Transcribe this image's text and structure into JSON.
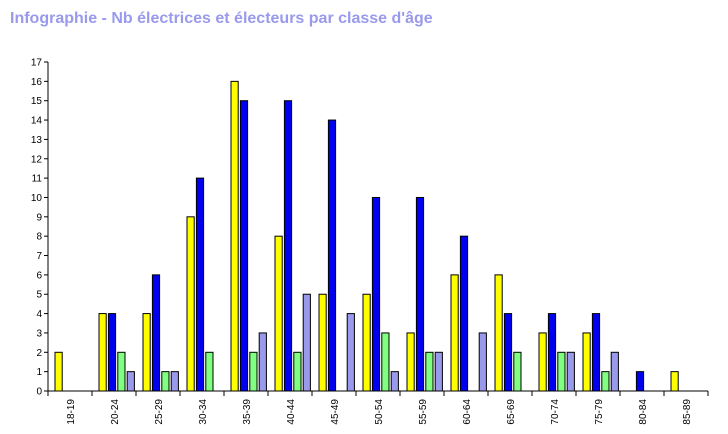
{
  "title": "Infographie - Nb électrices et électeurs par classe d'âge",
  "chart_data": {
    "type": "bar",
    "title": "Infographie - Nb électrices et électeurs par classe d'âge",
    "xlabel": "",
    "ylabel": "",
    "ylim": [
      0,
      17
    ],
    "grid": false,
    "categories": [
      "18-19",
      "20-24",
      "25-29",
      "30-34",
      "35-39",
      "40-44",
      "45-49",
      "50-54",
      "55-59",
      "60-64",
      "65-69",
      "70-74",
      "75-79",
      "80-84",
      "85-89"
    ],
    "series": [
      {
        "color": "#ffff00",
        "values": [
          2,
          4,
          4,
          9,
          16,
          8,
          5,
          5,
          3,
          6,
          6,
          3,
          3,
          0,
          1
        ]
      },
      {
        "color": "#0000ee",
        "values": [
          0,
          4,
          6,
          11,
          15,
          15,
          14,
          10,
          10,
          8,
          4,
          4,
          4,
          1,
          0
        ]
      },
      {
        "color": "#80ff80",
        "values": [
          0,
          2,
          1,
          2,
          2,
          2,
          0,
          3,
          2,
          0,
          2,
          2,
          1,
          0,
          0
        ]
      },
      {
        "color": "#9a9aec",
        "values": [
          0,
          1,
          1,
          0,
          3,
          5,
          4,
          1,
          2,
          3,
          0,
          2,
          2,
          0,
          0
        ]
      }
    ],
    "yticks": [
      "0",
      "1",
      "2",
      "3",
      "4",
      "5",
      "6",
      "7",
      "8",
      "9",
      "10",
      "11",
      "12",
      "13",
      "14",
      "15",
      "16",
      "17"
    ]
  }
}
